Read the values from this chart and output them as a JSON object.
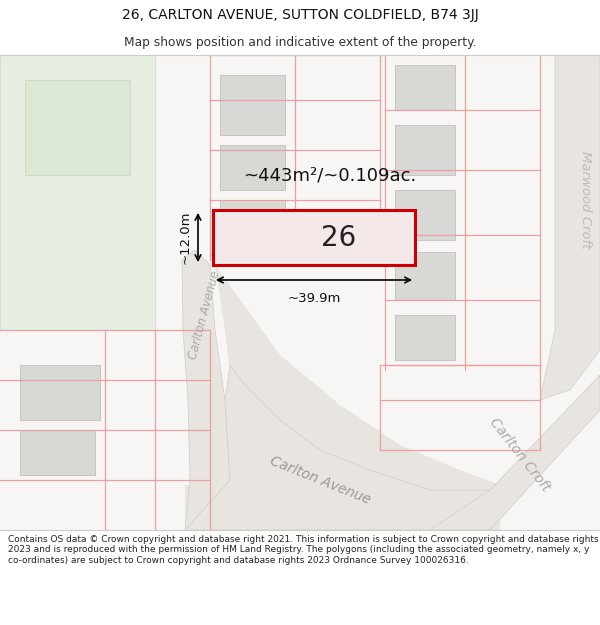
{
  "title_line1": "26, CARLTON AVENUE, SUTTON COLDFIELD, B74 3JJ",
  "title_line2": "Map shows position and indicative extent of the property.",
  "footer_text": "Contains OS data © Crown copyright and database right 2021. This information is subject to Crown copyright and database rights 2023 and is reproduced with the permission of HM Land Registry. The polygons (including the associated geometry, namely x, y co-ordinates) are subject to Crown copyright and database rights 2023 Ordnance Survey 100026316.",
  "bg_color": "#ffffff",
  "map_bg": "#f7f6f4",
  "road_fill": "#e8e4df",
  "road_edge": "#d0ccc7",
  "building_fill": "#d8d8d4",
  "building_edge": "#c0bfbb",
  "green_fill": "#e8ede2",
  "green_edge": "#d0d8c4",
  "highlight_fill": "#f5e8e8",
  "highlight_edge": "#cc0000",
  "highlight_lw": 2.2,
  "property_line_color": "#e8a0a0",
  "property_lw": 0.9,
  "dim_color": "#111111",
  "label_26": "26",
  "area_label": "~443m²/~0.109ac.",
  "dim_width": "~39.9m",
  "dim_height": "~12.0m",
  "street_carlton_avenue": "Carlton Avenue",
  "street_carlton_croft": "Carlton Croft",
  "street_marwood_croft": "Marwood Croft",
  "street_carlton_avenue_diag": "Carlton Avenue"
}
